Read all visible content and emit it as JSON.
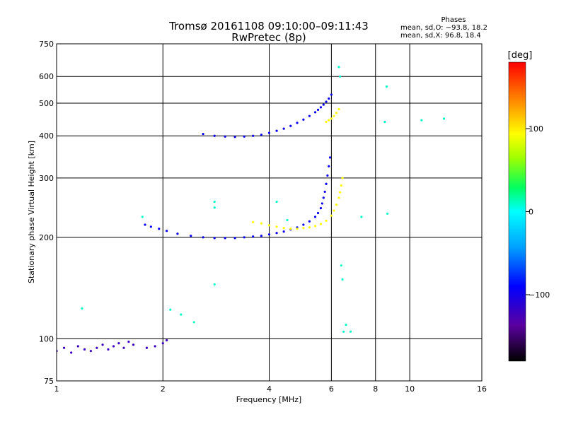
{
  "header": {
    "title_line1": "Tromsø 20161108 09:10:00–09:11:43",
    "title_line2": "RwPretec (8p)"
  },
  "phase_box": {
    "title": "Phases",
    "line_o": "mean, sd,O: −93.8, 18.2",
    "line_x": "mean, sd,X:  96.8, 18.4"
  },
  "colorbar": {
    "unit": "[deg]",
    "min": -180,
    "max": 180,
    "ticks": [
      {
        "value": 100,
        "label": "100"
      },
      {
        "value": 0,
        "label": "0"
      },
      {
        "value": -100,
        "label": "−100"
      }
    ]
  },
  "chart_data": {
    "type": "scatter",
    "xlabel": "Frequency [MHz]",
    "ylabel": "Stationary phase Virtual Height [km]",
    "xscale": "log2",
    "yscale": "log",
    "xlim": [
      1,
      16
    ],
    "ylim": [
      75,
      750
    ],
    "x_ticks": [
      {
        "value": 1,
        "label": "1"
      },
      {
        "value": 2,
        "label": "2"
      },
      {
        "value": 4,
        "label": "4"
      },
      {
        "value": 6,
        "label": "6"
      },
      {
        "value": 8,
        "label": "8"
      },
      {
        "value": 10,
        "label": "10"
      },
      {
        "value": 16,
        "label": "16"
      }
    ],
    "y_ticks": [
      {
        "value": 75,
        "label": "75"
      },
      {
        "value": 100,
        "label": "100"
      },
      {
        "value": 200,
        "label": "200"
      },
      {
        "value": 300,
        "label": "300"
      },
      {
        "value": 400,
        "label": "400"
      },
      {
        "value": 500,
        "label": "500"
      },
      {
        "value": 600,
        "label": "600"
      },
      {
        "value": 750,
        "label": "750"
      }
    ],
    "grid": true,
    "series": [
      {
        "mode": "O",
        "phase_deg": -95,
        "x": [
          1.78,
          1.85,
          1.95,
          2.05,
          2.2,
          2.4,
          2.6,
          2.8,
          3.0,
          3.2,
          3.4,
          3.6,
          3.8,
          4.0,
          4.2,
          4.4,
          4.6,
          4.8,
          5.0,
          5.2,
          5.4,
          5.5,
          5.6,
          5.65,
          5.7,
          5.75,
          5.8,
          5.85,
          5.9,
          5.95
        ],
        "y": [
          218,
          215,
          212,
          209,
          205,
          202,
          200,
          199,
          199,
          199,
          200,
          201,
          202,
          204,
          206,
          208,
          211,
          214,
          218,
          223,
          230,
          236,
          244,
          252,
          262,
          273,
          288,
          305,
          325,
          345
        ]
      },
      {
        "mode": "O-F2",
        "phase_deg": -95,
        "x": [
          2.6,
          2.8,
          3.0,
          3.2,
          3.4,
          3.6,
          3.8,
          4.0,
          4.2,
          4.4,
          4.6,
          4.8,
          5.0,
          5.2,
          5.4,
          5.5,
          5.6,
          5.7,
          5.8,
          5.9,
          6.0
        ],
        "y": [
          405,
          400,
          398,
          397,
          398,
          400,
          403,
          408,
          414,
          420,
          428,
          437,
          447,
          458,
          470,
          478,
          486,
          495,
          505,
          516,
          530
        ]
      },
      {
        "mode": "X",
        "phase_deg": 95,
        "x": [
          3.6,
          3.8,
          4.0,
          4.2,
          4.4,
          4.6,
          4.8,
          5.0,
          5.2,
          5.4,
          5.6,
          5.8,
          6.0,
          6.1,
          6.2,
          6.3,
          6.35,
          6.4,
          6.45
        ],
        "y": [
          222,
          220,
          217,
          215,
          213,
          212,
          212,
          213,
          214,
          216,
          219,
          224,
          232,
          240,
          250,
          262,
          272,
          285,
          300
        ]
      },
      {
        "mode": "X-F2",
        "phase_deg": 95,
        "x": [
          5.8,
          5.9,
          6.0,
          6.1,
          6.2,
          6.3
        ],
        "y": [
          440,
          445,
          450,
          458,
          468,
          480
        ]
      },
      {
        "mode": "E",
        "phase_deg": -120,
        "x": [
          1.0,
          1.05,
          1.1,
          1.15,
          1.2,
          1.25,
          1.3,
          1.35,
          1.4,
          1.45,
          1.5,
          1.55,
          1.6,
          1.65,
          1.8,
          1.9,
          2.0,
          2.05
        ],
        "y": [
          92,
          94,
          91,
          95,
          93,
          92,
          94,
          96,
          93,
          95,
          97,
          94,
          98,
          96,
          94,
          95,
          97,
          99
        ]
      },
      {
        "mode": "other",
        "phase_deg": 10,
        "x": [
          1.18,
          1.75,
          2.1,
          2.25,
          2.45,
          2.8,
          2.8,
          2.8,
          4.2,
          4.5,
          6.3,
          6.35,
          6.4,
          6.45,
          6.5,
          6.6,
          6.8,
          7.3,
          8.5,
          8.6,
          8.65,
          10.8,
          12.5
        ],
        "y": [
          123,
          230,
          122,
          118,
          112,
          145,
          245,
          255,
          255,
          225,
          640,
          600,
          165,
          150,
          105,
          110,
          105,
          230,
          440,
          560,
          235,
          445,
          450
        ]
      }
    ]
  }
}
